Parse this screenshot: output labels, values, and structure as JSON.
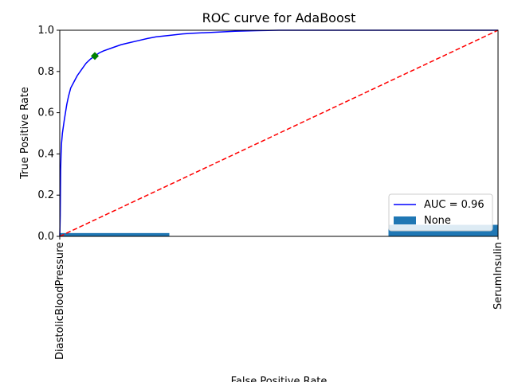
{
  "chart_data": {
    "type": "line",
    "title": "ROC curve for AdaBoost",
    "xlabel": "False Positive Rate",
    "ylabel": "True Positive Rate",
    "xlim": [
      0,
      1
    ],
    "ylim": [
      0,
      1
    ],
    "grid": false,
    "legend_position": "lower-right",
    "x_ticks": [
      "DiastolicBloodPressure",
      "SerumInsulin"
    ],
    "y_ticks": [
      "0.0",
      "0.2",
      "0.4",
      "0.6",
      "0.8",
      "1.0"
    ],
    "y_tick_values": [
      0,
      0.2,
      0.4,
      0.6,
      0.8,
      1.0
    ],
    "series": [
      {
        "name": "AUC = 0.96",
        "kind": "line",
        "color": "#0000ff",
        "x": [
          0.0,
          0.001,
          0.002,
          0.003,
          0.004,
          0.006,
          0.008,
          0.01,
          0.013,
          0.016,
          0.02,
          0.025,
          0.03,
          0.035,
          0.04,
          0.05,
          0.06,
          0.07,
          0.08,
          0.09,
          0.1,
          0.12,
          0.14,
          0.16,
          0.18,
          0.2,
          0.22,
          0.25,
          0.28,
          0.3,
          0.35,
          0.4,
          0.45,
          0.5,
          0.55,
          0.6,
          0.7,
          0.8,
          0.9,
          1.0
        ],
        "y": [
          0.0,
          0.1,
          0.32,
          0.4,
          0.45,
          0.5,
          0.53,
          0.56,
          0.6,
          0.64,
          0.68,
          0.72,
          0.74,
          0.76,
          0.78,
          0.81,
          0.84,
          0.86,
          0.875,
          0.89,
          0.9,
          0.915,
          0.93,
          0.94,
          0.95,
          0.96,
          0.968,
          0.975,
          0.982,
          0.985,
          0.99,
          0.995,
          0.998,
          1.0,
          1.0,
          1.0,
          1.0,
          1.0,
          1.0,
          1.0
        ]
      },
      {
        "name": "",
        "kind": "dashed-line",
        "color": "#ff0000",
        "x": [
          0,
          1
        ],
        "y": [
          0,
          1
        ]
      }
    ],
    "marker": {
      "x": 0.08,
      "y": 0.875,
      "color": "#008000",
      "shape": "diamond"
    },
    "bars": {
      "name": "None",
      "color": "#1f77b4",
      "items": [
        {
          "label": "DiastolicBloodPressure",
          "x_start": 0.0,
          "x_end": 0.25,
          "value": 0.016
        },
        {
          "label": "SerumInsulin",
          "x_start": 0.75,
          "x_end": 1.0,
          "value": 0.056
        }
      ]
    },
    "legend": [
      {
        "label": "AUC = 0.96",
        "kind": "line",
        "color": "#0000ff"
      },
      {
        "label": "None",
        "kind": "patch",
        "color": "#1f77b4"
      }
    ]
  }
}
